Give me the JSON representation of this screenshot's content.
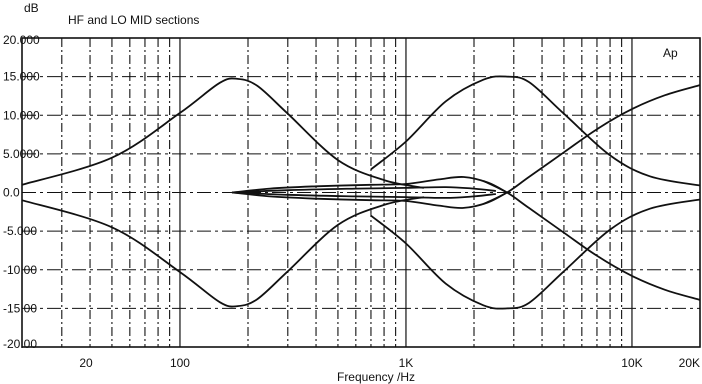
{
  "chart_data": {
    "type": "line",
    "title": "HF and LO MID sections",
    "xlabel": "Frequency /Hz",
    "ylabel": "dB",
    "corner_label": "Ap",
    "x_scale": "log",
    "xlim": [
      20,
      20000
    ],
    "ylim": [
      -20,
      20
    ],
    "grid": true,
    "x_tick_labels": [
      {
        "value": 20,
        "label": "20"
      },
      {
        "value": 100,
        "label": "100"
      },
      {
        "value": 1000,
        "label": "1K"
      },
      {
        "value": 10000,
        "label": "10K"
      },
      {
        "value": 20000,
        "label": "20K"
      }
    ],
    "y_tick_labels": [
      {
        "value": 20,
        "label": "20.000"
      },
      {
        "value": 15,
        "label": "15.000"
      },
      {
        "value": 10,
        "label": "10.000"
      },
      {
        "value": 5,
        "label": "5.0000"
      },
      {
        "value": 0,
        "label": "0.0"
      },
      {
        "value": -5,
        "label": "-5.000"
      },
      {
        "value": -10,
        "label": "-10.00"
      },
      {
        "value": -15,
        "label": "-15.00"
      },
      {
        "value": -20,
        "label": "-20.00"
      }
    ],
    "series": [
      {
        "x": [
          20,
          50,
          100,
          150,
          180,
          220,
          300,
          500,
          800,
          1200
        ],
        "y": [
          1.0,
          4.5,
          10.3,
          14.2,
          14.7,
          13.8,
          10.2,
          4.2,
          1.6,
          0.6
        ]
      },
      {
        "x": [
          20,
          50,
          100,
          150,
          180,
          220,
          300,
          500,
          800,
          1200
        ],
        "y": [
          -1.0,
          -4.5,
          -10.3,
          -14.2,
          -14.7,
          -13.8,
          -10.2,
          -4.2,
          -1.6,
          -0.6
        ]
      },
      {
        "x": [
          700,
          1000,
          1500,
          2200,
          2800,
          3500,
          5000,
          8000,
          12000,
          20000
        ],
        "y": [
          3.0,
          6.6,
          11.8,
          14.6,
          15.0,
          14.3,
          10.2,
          4.8,
          2.1,
          0.9
        ]
      },
      {
        "x": [
          700,
          1000,
          1500,
          2200,
          2800,
          3500,
          5000,
          8000,
          12000,
          20000
        ],
        "y": [
          -3.0,
          -6.6,
          -11.8,
          -14.6,
          -15.0,
          -14.3,
          -10.2,
          -4.8,
          -2.1,
          -0.9
        ]
      },
      {
        "x": [
          2200,
          2800,
          3500,
          5000,
          7000,
          10000,
          14000,
          20000
        ],
        "y": [
          -1.5,
          0.0,
          2.0,
          5.2,
          8.2,
          10.8,
          12.6,
          13.9
        ]
      },
      {
        "x": [
          2200,
          2800,
          3500,
          5000,
          7000,
          10000,
          14000,
          20000
        ],
        "y": [
          1.5,
          0.0,
          -2.0,
          -5.2,
          -8.2,
          -10.8,
          -12.6,
          -13.9
        ]
      },
      {
        "x": [
          170,
          250,
          400,
          700,
          1000,
          1400,
          1800,
          2300,
          2800
        ],
        "y": [
          0.0,
          0.5,
          0.8,
          1.0,
          1.1,
          1.7,
          2.0,
          1.3,
          0.0
        ]
      },
      {
        "x": [
          170,
          250,
          400,
          700,
          1000,
          1400,
          1800,
          2300,
          2800
        ],
        "y": [
          0.0,
          -0.5,
          -0.8,
          -1.0,
          -1.1,
          -1.7,
          -2.0,
          -1.3,
          0.0
        ]
      },
      {
        "x": [
          170,
          300,
          600,
          1000,
          1500,
          2000,
          2500
        ],
        "y": [
          0.0,
          0.3,
          0.5,
          0.6,
          0.7,
          0.5,
          0.2
        ]
      },
      {
        "x": [
          170,
          300,
          600,
          1000,
          1500,
          2000,
          2500
        ],
        "y": [
          0.0,
          -0.3,
          -0.5,
          -0.6,
          -0.7,
          -0.5,
          -0.2
        ]
      }
    ]
  }
}
